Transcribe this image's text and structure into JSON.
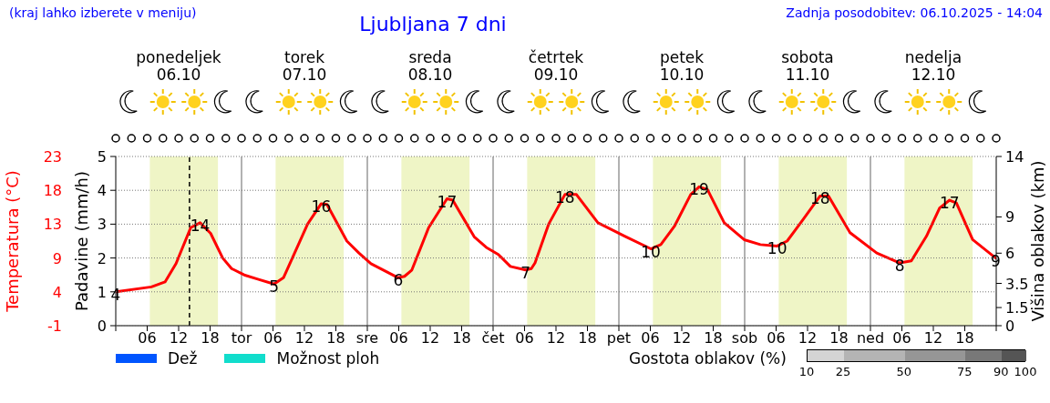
{
  "chart_data": {
    "type": "line",
    "title": "Ljubljana 7 dni",
    "annotations": [
      "(kraj lahko izberete v meniju)",
      "Zadnja posodobitev: 06.10.2025 - 14:04",
      {
        "text": "4",
        "x": "2025-10-06T00:00",
        "y": 3.8
      },
      {
        "text": "14",
        "x": "2025-10-06T16:06",
        "y": 13.6
      },
      {
        "text": "5",
        "x": "2025-10-07T06:12",
        "y": 4.9
      },
      {
        "text": "16",
        "x": "2025-10-07T15:12",
        "y": 16.3
      },
      {
        "text": "6",
        "x": "2025-10-08T05:54",
        "y": 5.8
      },
      {
        "text": "17",
        "x": "2025-10-08T15:12",
        "y": 17
      },
      {
        "text": "7",
        "x": "2025-10-09T06:12",
        "y": 6.9
      },
      {
        "text": "18",
        "x": "2025-10-09T13:42",
        "y": 17.6
      },
      {
        "text": "10",
        "x": "2025-10-10T06:06",
        "y": 9.9
      },
      {
        "text": "19",
        "x": "2025-10-10T15:18",
        "y": 18.7
      },
      {
        "text": "10",
        "x": "2025-10-11T06:12",
        "y": 10.3
      },
      {
        "text": "18",
        "x": "2025-10-11T14:24",
        "y": 17.4
      },
      {
        "text": "8",
        "x": "2025-10-12T05:36",
        "y": 7.9
      },
      {
        "text": "17",
        "x": "2025-10-12T15:06",
        "y": 16.8
      },
      {
        "text": "9",
        "x": "2025-10-12T23:54",
        "y": 8.6
      }
    ],
    "ylabel": "Temperatura (°C)",
    "y2label": "Padavine (mm/h)",
    "y3label": "Višina oblakov (km)",
    "xlim": [
      "2025-10-06T00:00",
      "2025-10-13T00:00"
    ],
    "xticks": [
      {
        "value": "2025-10-06T00:00",
        "label": null
      },
      {
        "value": "2025-10-06T06:00",
        "label": "06"
      },
      {
        "value": "2025-10-06T12:00",
        "label": "12"
      },
      {
        "value": "2025-10-06T18:00",
        "label": "18"
      },
      {
        "value": "2025-10-07T00:00",
        "label": "tor"
      },
      {
        "value": "2025-10-07T06:00",
        "label": "06"
      },
      {
        "value": "2025-10-07T12:00",
        "label": "12"
      },
      {
        "value": "2025-10-07T18:00",
        "label": "18"
      },
      {
        "value": "2025-10-08T00:00",
        "label": "sre"
      },
      {
        "value": "2025-10-08T06:00",
        "label": "06"
      },
      {
        "value": "2025-10-08T12:00",
        "label": "12"
      },
      {
        "value": "2025-10-08T18:00",
        "label": "18"
      },
      {
        "value": "2025-10-09T00:00",
        "label": "čet"
      },
      {
        "value": "2025-10-09T06:00",
        "label": "06"
      },
      {
        "value": "2025-10-09T12:00",
        "label": "12"
      },
      {
        "value": "2025-10-09T18:00",
        "label": "18"
      },
      {
        "value": "2025-10-10T00:00",
        "label": "pet"
      },
      {
        "value": "2025-10-10T06:00",
        "label": "06"
      },
      {
        "value": "2025-10-10T12:00",
        "label": "12"
      },
      {
        "value": "2025-10-10T18:00",
        "label": "18"
      },
      {
        "value": "2025-10-11T00:00",
        "label": "sob"
      },
      {
        "value": "2025-10-11T06:00",
        "label": "06"
      },
      {
        "value": "2025-10-11T12:00",
        "label": "12"
      },
      {
        "value": "2025-10-11T18:00",
        "label": "18"
      },
      {
        "value": "2025-10-12T00:00",
        "label": "ned"
      },
      {
        "value": "2025-10-12T06:00",
        "label": "06"
      },
      {
        "value": "2025-10-12T12:00",
        "label": "12"
      },
      {
        "value": "2025-10-12T18:00",
        "label": "18"
      },
      {
        "value": "2025-10-13T00:00",
        "label": null
      }
    ],
    "x2lim": [
      "2025-10-06T00:00",
      "2025-10-13T00:00"
    ],
    "x2ticks": [
      {
        "value": "2025-10-06T12:00",
        "label": "ponedeljek 06.10"
      },
      {
        "value": "2025-10-07T12:00",
        "label": "torek 07.10"
      },
      {
        "value": "2025-10-08T12:00",
        "label": "sreda 08.10"
      },
      {
        "value": "2025-10-09T12:00",
        "label": "četrtek 09.10"
      },
      {
        "value": "2025-10-10T12:00",
        "label": "petek 10.10"
      },
      {
        "value": "2025-10-11T12:00",
        "label": "sobota 11.10"
      },
      {
        "value": "2025-10-12T12:00",
        "label": "nedelja 12.10"
      }
    ],
    "ylim": [
      -1,
      23
    ],
    "yticks": [
      -1,
      {
        "value": 3.8,
        "label": "4"
      },
      {
        "value": 8.6,
        "label": "9"
      },
      {
        "value": 13.4,
        "label": "13"
      },
      {
        "value": 18.2,
        "label": "18"
      },
      23
    ],
    "y2lim": [
      0,
      5
    ],
    "y2ticks": [
      0,
      1,
      2,
      3,
      4,
      5
    ],
    "y3lim": [
      0,
      14
    ],
    "y3ticks": [
      0,
      1.5,
      3.5,
      6,
      9,
      14
    ],
    "grid": "y",
    "legend": "bottom left",
    "clabel": "Gostota oblakov (%)",
    "clim": [
      10,
      100
    ],
    "cticks": [
      10,
      25,
      50,
      75,
      90,
      100
    ],
    "bands": [
      {
        "axis": "x",
        "from": "2025-10-06T06:30",
        "to": "2025-10-06T19:30",
        "color": "#eff5c6"
      },
      {
        "axis": "x",
        "from": "2025-10-07T06:30",
        "to": "2025-10-07T19:30",
        "color": "#eff5c6"
      },
      {
        "axis": "x",
        "from": "2025-10-08T06:30",
        "to": "2025-10-08T19:30",
        "color": "#eff5c6"
      },
      {
        "axis": "x",
        "from": "2025-10-09T06:30",
        "to": "2025-10-09T19:30",
        "color": "#eff5c6"
      },
      {
        "axis": "x",
        "from": "2025-10-10T06:30",
        "to": "2025-10-10T19:30",
        "color": "#eff5c6"
      },
      {
        "axis": "x",
        "from": "2025-10-11T06:30",
        "to": "2025-10-11T19:30",
        "color": "#eff5c6"
      },
      {
        "axis": "x",
        "from": "2025-10-12T06:30",
        "to": "2025-10-12T19:30",
        "color": "#eff5c6"
      }
    ],
    "ref_lines": [
      {
        "axis": "x",
        "value": "2025-10-07T00:00",
        "color": "#999999"
      },
      {
        "axis": "x",
        "value": "2025-10-08T00:00",
        "color": "#999999"
      },
      {
        "axis": "x",
        "value": "2025-10-09T00:00",
        "color": "#999999"
      },
      {
        "axis": "x",
        "value": "2025-10-10T00:00",
        "color": "#999999"
      },
      {
        "axis": "x",
        "value": "2025-10-11T00:00",
        "color": "#999999"
      },
      {
        "axis": "x",
        "value": "2025-10-12T00:00",
        "color": "#999999"
      },
      {
        "axis": "x",
        "value": "2025-10-06T14:04",
        "color": "#000000",
        "line_style": "dashed"
      }
    ],
    "series": [
      {
        "color": "#ff0000",
        "marker": "none",
        "x": [
          "2025-10-06T00:00",
          "2025-10-06T06:48",
          "2025-10-06T09:24",
          "2025-10-06T11:30",
          "2025-10-06T14:18",
          "2025-10-06T16:06",
          "2025-10-06T18:06",
          "2025-10-06T20:24",
          "2025-10-06T22:06",
          "2025-10-07T00:30",
          "2025-10-07T03:06",
          "2025-10-07T06:12",
          "2025-10-07T08:00",
          "2025-10-07T09:42",
          "2025-10-07T12:36",
          "2025-10-07T15:12",
          "2025-10-07T16:18",
          "2025-10-07T20:06",
          "2025-10-07T22:24",
          "2025-10-08T00:42",
          "2025-10-08T05:54",
          "2025-10-08T07:06",
          "2025-10-08T08:30",
          "2025-10-08T11:42",
          "2025-10-08T15:12",
          "2025-10-08T16:18",
          "2025-10-08T20:24",
          "2025-10-08T22:42",
          "2025-10-09T01:00",
          "2025-10-09T03:18",
          "2025-10-09T06:12",
          "2025-10-09T07:18",
          "2025-10-09T08:00",
          "2025-10-09T10:36",
          "2025-10-09T13:42",
          "2025-10-09T15:54",
          "2025-10-09T20:00",
          "2025-10-10T01:06",
          "2025-10-10T06:06",
          "2025-10-10T08:00",
          "2025-10-10T10:36",
          "2025-10-10T13:42",
          "2025-10-10T15:18",
          "2025-10-10T16:54",
          "2025-10-10T20:06",
          "2025-10-10T23:54",
          "2025-10-11T03:00",
          "2025-10-11T06:12",
          "2025-10-11T08:06",
          "2025-10-11T11:12",
          "2025-10-11T14:24",
          "2025-10-11T16:00",
          "2025-10-11T20:06",
          "2025-10-12T01:12",
          "2025-10-12T05:36",
          "2025-10-12T07:48",
          "2025-10-12T10:42",
          "2025-10-12T13:12",
          "2025-10-12T15:06",
          "2025-10-12T16:24",
          "2025-10-12T19:30",
          "2025-10-12T23:54"
        ],
        "values": [
          3.8,
          4.5,
          5.2,
          7.8,
          12.9,
          13.6,
          12.1,
          8.6,
          7.1,
          6.2,
          5.6,
          4.9,
          5.8,
          8.6,
          13.4,
          16.3,
          16.2,
          11,
          9.3,
          7.8,
          5.8,
          6,
          6.9,
          12.9,
          17,
          16.8,
          11.6,
          10.1,
          9.1,
          7.4,
          6.9,
          7.1,
          7.9,
          13.4,
          17.6,
          17.6,
          13.6,
          11.7,
          9.9,
          10.5,
          13.1,
          17.6,
          18.7,
          18.3,
          13.6,
          11.2,
          10.5,
          10.3,
          11,
          14.1,
          17.4,
          17.4,
          12.2,
          9.3,
          7.9,
          8.2,
          11.7,
          15.7,
          16.8,
          16.4,
          11.2,
          8.6
        ]
      },
      {
        "type": "bar",
        "name": "Dež",
        "color": "#0055ff",
        "x": [
          "2025-10-06T03:00",
          "2025-10-06T09:00",
          "2025-10-06T15:00",
          "2025-10-06T21:00",
          "2025-10-07T03:00",
          "2025-10-07T09:00",
          "2025-10-07T15:00",
          "2025-10-07T21:00",
          "2025-10-08T03:00",
          "2025-10-08T09:00",
          "2025-10-08T15:00",
          "2025-10-08T21:00",
          "2025-10-09T03:00",
          "2025-10-09T09:00",
          "2025-10-09T15:00",
          "2025-10-09T21:00",
          "2025-10-10T03:00",
          "2025-10-10T09:00",
          "2025-10-10T15:00",
          "2025-10-10T21:00",
          "2025-10-11T03:00",
          "2025-10-11T09:00",
          "2025-10-11T15:00",
          "2025-10-11T21:00",
          "2025-10-12T03:00",
          "2025-10-12T09:00",
          "2025-10-12T15:00",
          "2025-10-12T21:00"
        ],
        "values": [
          0,
          0,
          0,
          0,
          0,
          0,
          0,
          0,
          0,
          0,
          0,
          0,
          0,
          0,
          0,
          0,
          0,
          0,
          0,
          0,
          0,
          0,
          0,
          0,
          0,
          0,
          0,
          0
        ]
      },
      {
        "type": "bar",
        "name": "Možnost ploh",
        "color": "#11ddcc",
        "x": [
          "2025-10-06T03:00",
          "2025-10-06T09:00",
          "2025-10-06T15:00",
          "2025-10-06T21:00",
          "2025-10-07T03:00",
          "2025-10-07T09:00",
          "2025-10-07T15:00",
          "2025-10-07T21:00",
          "2025-10-08T03:00",
          "2025-10-08T09:00",
          "2025-10-08T15:00",
          "2025-10-08T21:00",
          "2025-10-09T03:00",
          "2025-10-09T09:00",
          "2025-10-09T15:00",
          "2025-10-09T21:00",
          "2025-10-10T03:00",
          "2025-10-10T09:00",
          "2025-10-10T15:00",
          "2025-10-10T21:00",
          "2025-10-11T03:00",
          "2025-10-11T09:00",
          "2025-10-11T15:00",
          "2025-10-11T21:00",
          "2025-10-12T03:00",
          "2025-10-12T09:00",
          "2025-10-12T15:00",
          "2025-10-12T21:00"
        ],
        "values": [
          0,
          0,
          0,
          0,
          0,
          0,
          0,
          0,
          0,
          0,
          0,
          0,
          0,
          0,
          0,
          0,
          0,
          0,
          0,
          0,
          0,
          0,
          0,
          0,
          0,
          0,
          0,
          0
        ]
      }
    ]
  }
}
